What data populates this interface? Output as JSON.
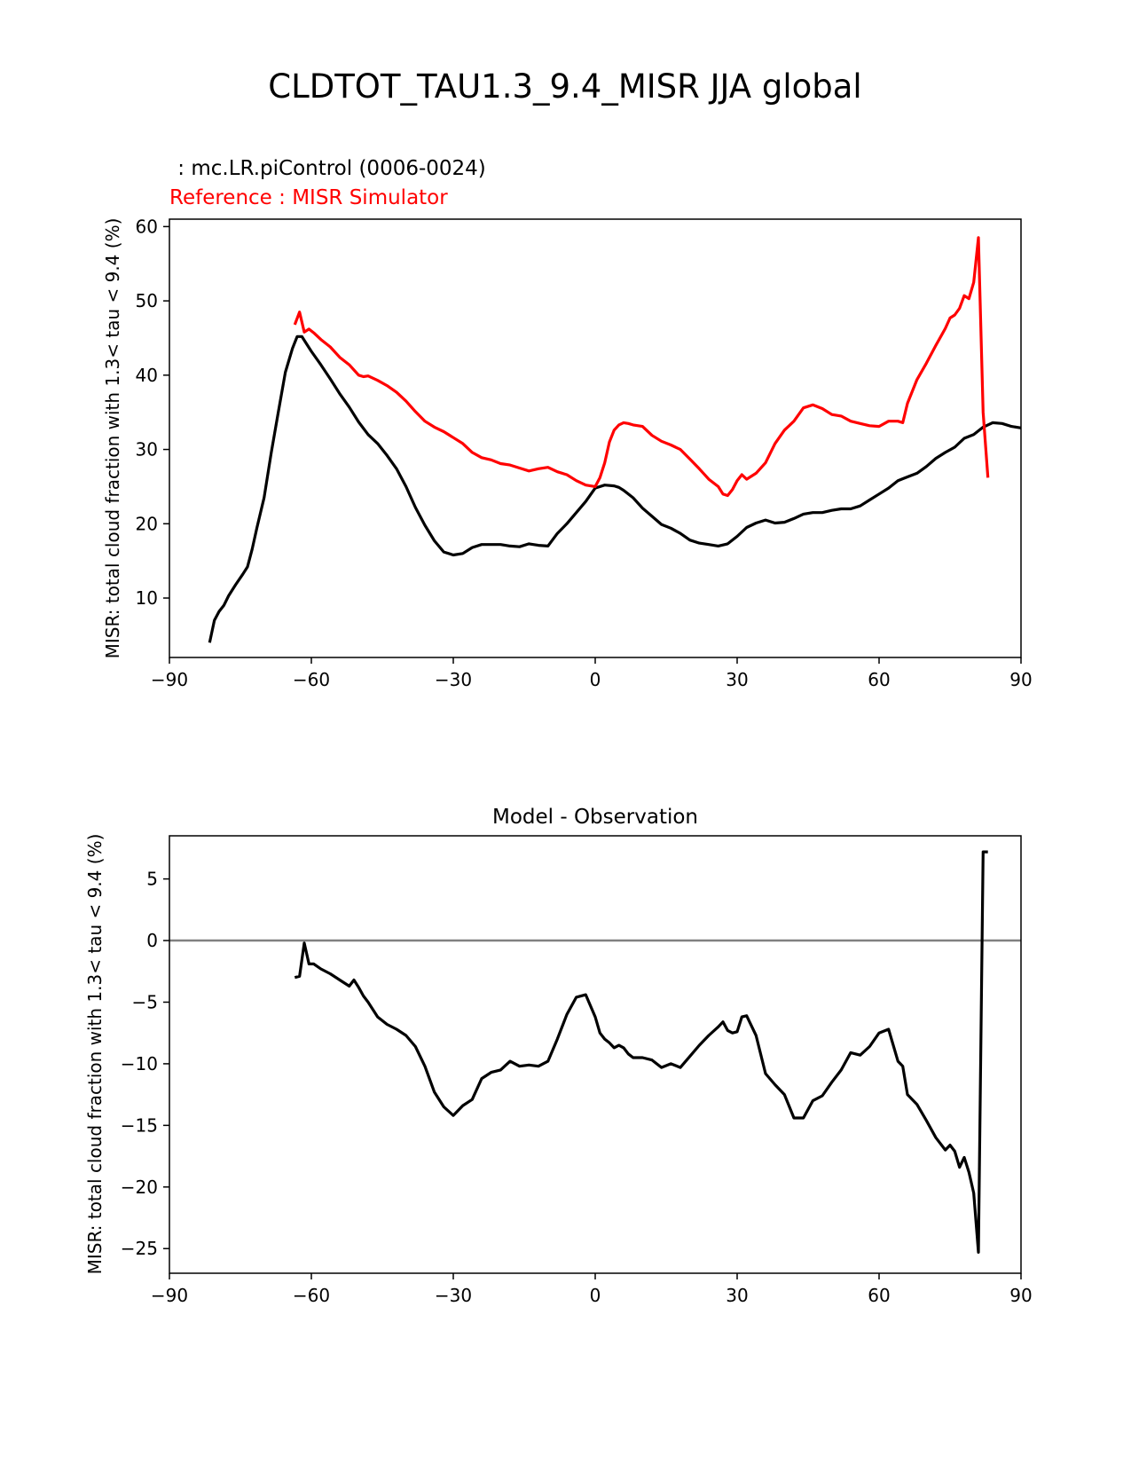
{
  "figure_title": "CLDTOT_TAU1.3_9.4_MISR JJA global",
  "colors": {
    "model": "#000000",
    "reference": "#ff0000",
    "zero_line": "#808080",
    "axes": "#000000",
    "background": "#ffffff"
  },
  "chart_data": [
    {
      "type": "line",
      "title_model": " : mc.LR.piControl (0006-0024)",
      "title_reference": "Reference : MISR Simulator",
      "xlabel": "",
      "ylabel": "MISR: total cloud fraction with 1.3< tau < 9.4 (%)",
      "xlim": [
        -90,
        90
      ],
      "ylim": [
        2,
        61
      ],
      "xticks": [
        -90,
        -60,
        -30,
        0,
        30,
        60,
        90
      ],
      "xtick_labels": [
        "−90",
        "−60",
        "−30",
        "0",
        "30",
        "60",
        "90"
      ],
      "yticks": [
        10,
        20,
        30,
        40,
        50,
        60
      ],
      "ytick_labels": [
        "10",
        "20",
        "30",
        "40",
        "50",
        "60"
      ],
      "series": [
        {
          "name": "mc.LR.piControl (0006-0024)",
          "color": "#000000",
          "x": [
            -81.5,
            -80.5,
            -79.5,
            -78.5,
            -77.5,
            -76,
            -74.5,
            -73.5,
            -72.5,
            -71.5,
            -70,
            -68.5,
            -67,
            -65.5,
            -64,
            -63,
            -62,
            -61,
            -60,
            -58,
            -56,
            -54,
            -52,
            -50,
            -48,
            -46,
            -44,
            -42,
            -40,
            -38,
            -36,
            -34,
            -32,
            -30,
            -28,
            -26,
            -24,
            -22,
            -20,
            -18,
            -16,
            -14,
            -12,
            -10,
            -8,
            -6,
            -4,
            -2,
            0,
            2,
            4,
            5,
            6,
            7,
            8,
            10,
            12,
            14,
            16,
            18,
            20,
            22,
            24,
            26,
            28,
            30,
            32,
            34,
            36,
            38,
            40,
            42,
            44,
            46,
            48,
            50,
            52,
            54,
            56,
            58,
            60,
            62,
            64,
            66,
            68,
            70,
            72,
            74,
            76,
            78,
            80,
            82,
            84,
            86,
            88,
            90
          ],
          "y": [
            4,
            7,
            8.2,
            9,
            10.3,
            11.8,
            13.2,
            14.2,
            16.6,
            19.5,
            23.5,
            29.5,
            35,
            40.4,
            43.6,
            45.2,
            45.2,
            44.2,
            43.2,
            41.4,
            39.5,
            37.5,
            35.7,
            33.7,
            32,
            30.8,
            29.2,
            27.4,
            25,
            22.2,
            19.8,
            17.7,
            16.2,
            15.8,
            16,
            16.8,
            17.2,
            17.2,
            17.2,
            17,
            16.9,
            17.3,
            17.1,
            17,
            18.7,
            20,
            21.5,
            23,
            24.8,
            25.2,
            25.1,
            24.9,
            24.5,
            24,
            23.5,
            22.1,
            21,
            19.9,
            19.4,
            18.7,
            17.8,
            17.4,
            17.2,
            17,
            17.3,
            18.3,
            19.5,
            20.1,
            20.5,
            20.1,
            20.2,
            20.7,
            21.3,
            21.5,
            21.5,
            21.8,
            22,
            22,
            22.4,
            23.2,
            24,
            24.8,
            25.8,
            26.3,
            26.8,
            27.7,
            28.8,
            29.6,
            30.3,
            31.5,
            32,
            33,
            33.6,
            33.5,
            33.1,
            32.9
          ]
        },
        {
          "name": "Reference : MISR Simulator",
          "color": "#ff0000",
          "x": [
            -63.5,
            -62.5,
            -61.5,
            -60.5,
            -59.5,
            -58,
            -56,
            -54,
            -52,
            -50,
            -49,
            -48,
            -46,
            -44,
            -42,
            -40,
            -38,
            -36,
            -34,
            -32,
            -30,
            -28,
            -26,
            -24,
            -22,
            -20,
            -18,
            -16,
            -14,
            -12,
            -10,
            -8,
            -6,
            -4,
            -2,
            0,
            1,
            2,
            3,
            4,
            5,
            6,
            7,
            8,
            10,
            12,
            14,
            16,
            18,
            20,
            22,
            24,
            26,
            27,
            28,
            29,
            30,
            31,
            32,
            34,
            36,
            38,
            40,
            42,
            44,
            46,
            48,
            50,
            52,
            54,
            56,
            58,
            60,
            62,
            64,
            65,
            66,
            68,
            70,
            72,
            74,
            75,
            76,
            77,
            78,
            79,
            80,
            81,
            82,
            83
          ],
          "y": [
            46.8,
            48.5,
            45.8,
            46.2,
            45.7,
            44.8,
            43.8,
            42.4,
            41.4,
            40,
            39.8,
            39.9,
            39.3,
            38.6,
            37.7,
            36.5,
            35.1,
            33.8,
            33,
            32.4,
            31.6,
            30.8,
            29.6,
            28.9,
            28.6,
            28.1,
            27.9,
            27.5,
            27.1,
            27.4,
            27.6,
            27,
            26.6,
            25.8,
            25.2,
            25,
            26.2,
            28.2,
            31,
            32.6,
            33.3,
            33.6,
            33.5,
            33.3,
            33.1,
            31.9,
            31.1,
            30.6,
            30,
            28.7,
            27.4,
            26,
            25,
            24,
            23.8,
            24.6,
            25.8,
            26.6,
            26,
            26.8,
            28.2,
            30.8,
            32.6,
            33.8,
            35.6,
            36,
            35.5,
            34.7,
            34.5,
            33.8,
            33.5,
            33.2,
            33.1,
            33.8,
            33.8,
            33.6,
            36.2,
            39.4,
            41.6,
            44,
            46.3,
            47.7,
            48.1,
            49,
            50.7,
            50.3,
            52.5,
            58.5,
            35,
            26.2
          ]
        }
      ]
    },
    {
      "type": "line",
      "title": "Model - Observation",
      "xlabel": "",
      "ylabel": "MISR: total cloud fraction with 1.3< tau < 9.4 (%)",
      "xlim": [
        -90,
        90
      ],
      "ylim": [
        -27,
        8.5
      ],
      "xticks": [
        -90,
        -60,
        -30,
        0,
        30,
        60,
        90
      ],
      "xtick_labels": [
        "−90",
        "−60",
        "−30",
        "0",
        "30",
        "60",
        "90"
      ],
      "yticks": [
        5,
        0,
        -5,
        -10,
        -15,
        -20,
        -25
      ],
      "ytick_labels": [
        "5",
        "0",
        "−5",
        "−10",
        "−15",
        "−20",
        "−25"
      ],
      "zero_line": 0,
      "series": [
        {
          "name": "Model - Observation",
          "color": "#000000",
          "x": [
            -63.5,
            -62.5,
            -61.5,
            -60.5,
            -59.5,
            -58,
            -56,
            -54,
            -52,
            -51,
            -50,
            -49,
            -48,
            -46,
            -44,
            -42,
            -40,
            -38,
            -36,
            -34,
            -32,
            -30,
            -28,
            -26,
            -24,
            -22,
            -20,
            -18,
            -16,
            -14,
            -12,
            -10,
            -8,
            -6,
            -4,
            -2,
            0,
            1,
            2,
            3,
            4,
            5,
            6,
            7,
            8,
            10,
            12,
            14,
            16,
            18,
            20,
            22,
            24,
            26,
            27,
            28,
            29,
            30,
            31,
            32,
            34,
            36,
            38,
            40,
            42,
            44,
            46,
            48,
            50,
            52,
            54,
            56,
            58,
            60,
            62,
            64,
            65,
            66,
            68,
            70,
            72,
            74,
            75,
            76,
            77,
            78,
            79,
            80,
            81,
            82,
            83
          ],
          "y": [
            -3,
            -2.9,
            -0.2,
            -1.9,
            -1.9,
            -2.3,
            -2.7,
            -3.2,
            -3.7,
            -3.2,
            -3.8,
            -4.5,
            -5,
            -6.2,
            -6.8,
            -7.2,
            -7.7,
            -8.6,
            -10.2,
            -12.3,
            -13.5,
            -14.2,
            -13.4,
            -12.9,
            -11.2,
            -10.7,
            -10.5,
            -9.8,
            -10.2,
            -10.1,
            -10.2,
            -9.8,
            -8,
            -6,
            -4.6,
            -4.4,
            -6.2,
            -7.5,
            -8,
            -8.3,
            -8.7,
            -8.5,
            -8.7,
            -9.2,
            -9.5,
            -9.5,
            -9.7,
            -10.3,
            -10,
            -10.3,
            -9.4,
            -8.5,
            -7.7,
            -7,
            -6.6,
            -7.3,
            -7.5,
            -7.4,
            -6.2,
            -6.1,
            -7.7,
            -10.8,
            -11.7,
            -12.5,
            -14.4,
            -14.4,
            -13,
            -12.6,
            -11.5,
            -10.5,
            -9.1,
            -9.3,
            -8.6,
            -7.5,
            -7.2,
            -9.8,
            -10.2,
            -12.5,
            -13.3,
            -14.6,
            -16,
            -17,
            -16.6,
            -17.1,
            -18.4,
            -17.6,
            -18.8,
            -20.5,
            -25.3,
            7.2,
            7.2
          ]
        }
      ]
    }
  ]
}
